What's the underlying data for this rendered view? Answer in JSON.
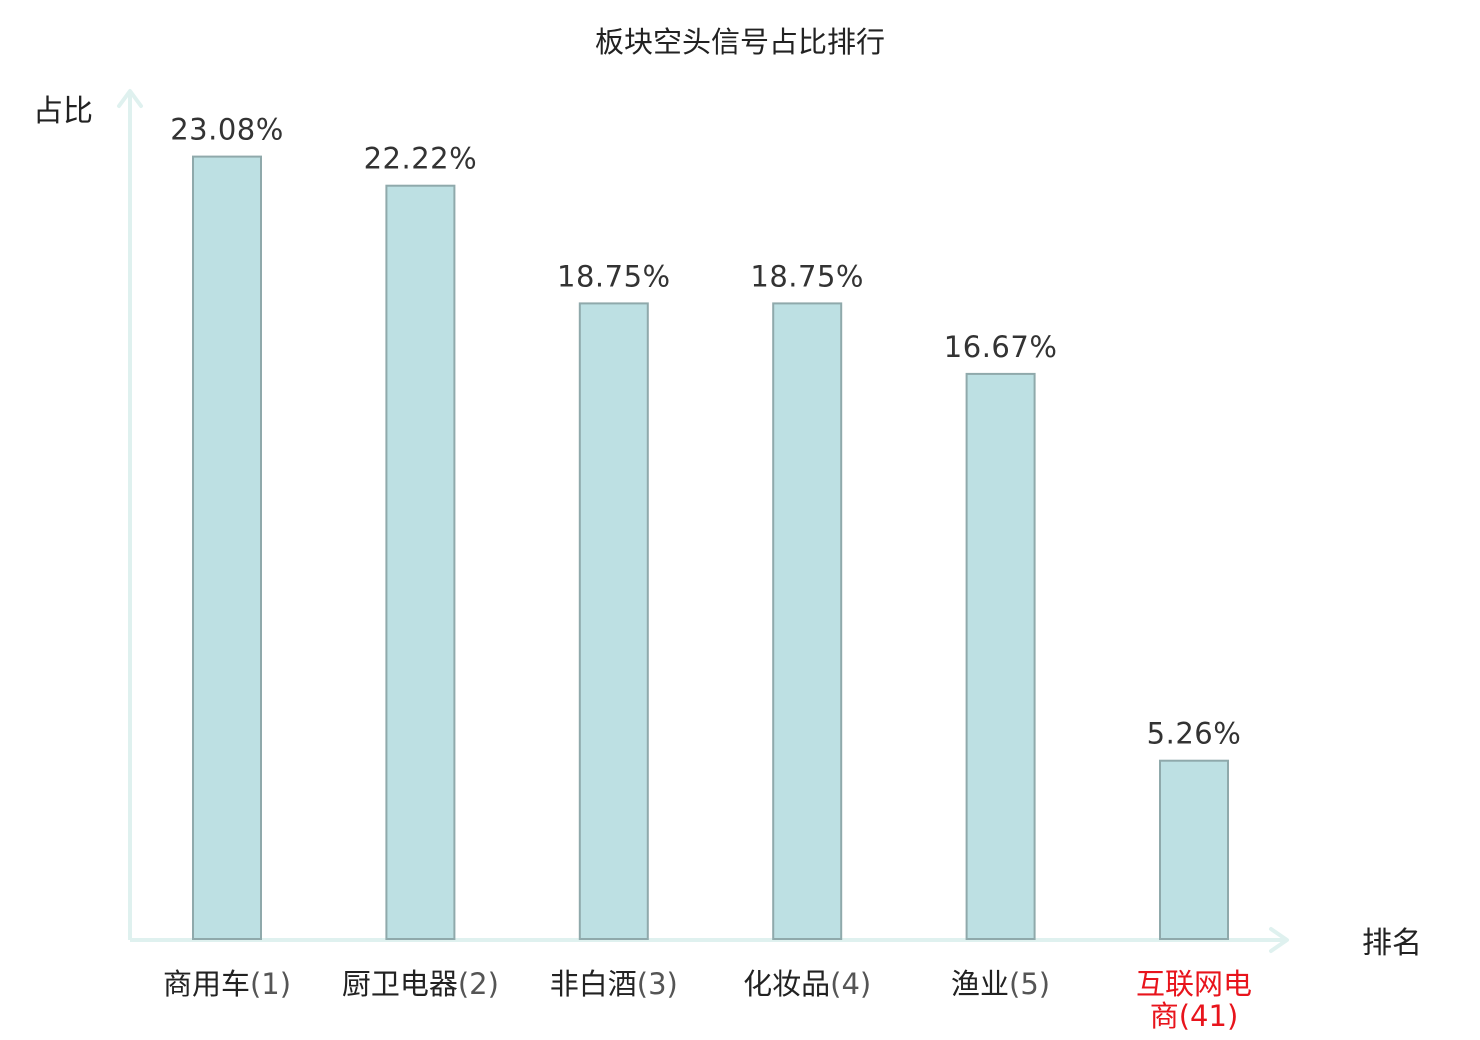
{
  "chart_data": {
    "type": "bar",
    "title": "板块空头信号占比排行",
    "xlabel": "排名",
    "ylabel": "占比",
    "ylim": [
      0,
      26
    ],
    "grid": false,
    "legend": "none",
    "categories": [
      {
        "name": "商用车",
        "rank": "(1)",
        "highlight": false
      },
      {
        "name": "厨卫电器",
        "rank": "(2)",
        "highlight": false
      },
      {
        "name": "非白酒",
        "rank": "(3)",
        "highlight": false
      },
      {
        "name": "化妆品",
        "rank": "(4)",
        "highlight": false
      },
      {
        "name": "渔业",
        "rank": "(5)",
        "highlight": false
      },
      {
        "name": "互联网电商",
        "rank": "(41)",
        "highlight": true
      }
    ],
    "values": [
      23.08,
      22.22,
      18.75,
      18.75,
      16.67,
      5.26
    ],
    "value_labels": [
      "23.08%",
      "22.22%",
      "18.75%",
      "18.75%",
      "16.67%",
      "5.26%"
    ]
  },
  "colors": {
    "bar_fill": "#bde0e3",
    "bar_stroke": "#8fa9ab",
    "axis": "#dff1ef",
    "text": "#222222",
    "value_text": "#333333",
    "rank_text": "#555555",
    "highlight": "#e8141c"
  }
}
